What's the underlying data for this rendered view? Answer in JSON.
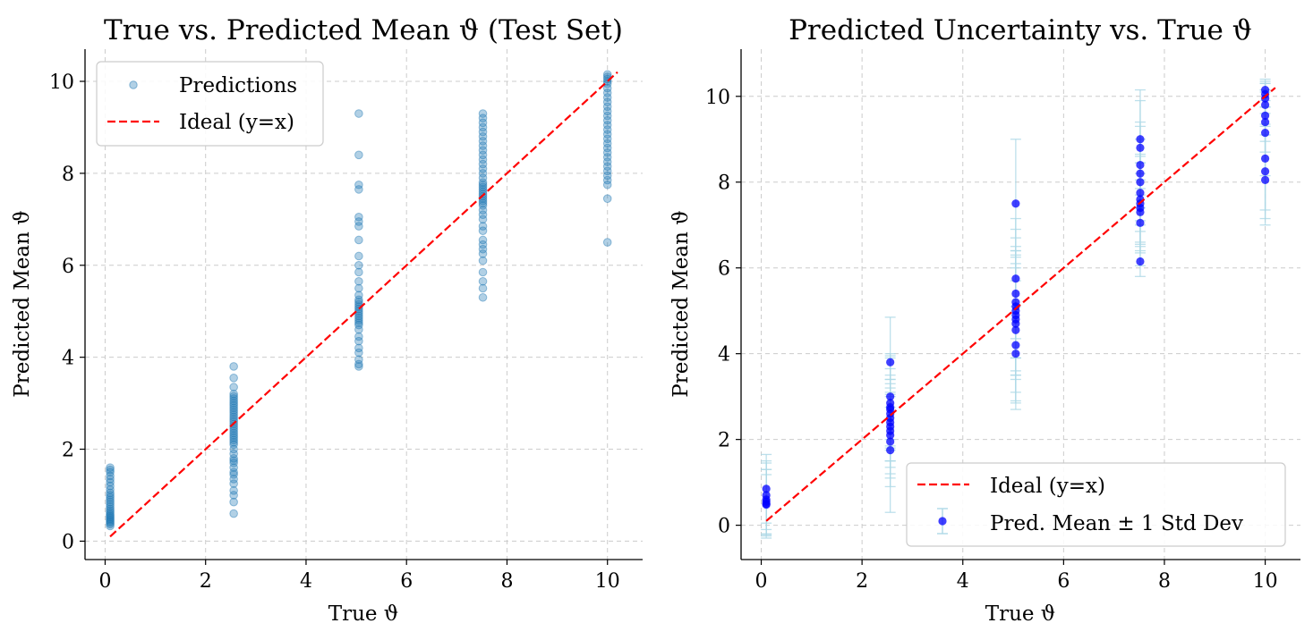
{
  "colors": {
    "predictions": "#1f77b4",
    "ideal": "#ff0000",
    "pred_mean": "#0000ff",
    "errorbar": "#add8e6",
    "grid": "#cccccc"
  },
  "chart_data": [
    {
      "type": "scatter",
      "title": "True vs. Predicted Mean ϑ (Test Set)",
      "xlabel": "True ϑ",
      "ylabel": "Predicted Mean ϑ",
      "xlim": [
        -0.4,
        10.7
      ],
      "ylim": [
        -0.4,
        10.7
      ],
      "xticks": [
        "0",
        "2",
        "4",
        "6",
        "8",
        "10"
      ],
      "yticks": [
        "0",
        "2",
        "4",
        "6",
        "8",
        "10"
      ],
      "grid": true,
      "legend_position": "top-left",
      "series": [
        {
          "name": "Predictions",
          "kind": "points",
          "points": [
            [
              0.1,
              1.6
            ],
            [
              0.1,
              1.55
            ],
            [
              0.1,
              1.5
            ],
            [
              0.1,
              1.42
            ],
            [
              0.1,
              1.35
            ],
            [
              0.1,
              1.28
            ],
            [
              0.1,
              1.2
            ],
            [
              0.1,
              1.12
            ],
            [
              0.1,
              1.05
            ],
            [
              0.1,
              1.0
            ],
            [
              0.1,
              0.95
            ],
            [
              0.1,
              0.9
            ],
            [
              0.1,
              0.85
            ],
            [
              0.1,
              0.8
            ],
            [
              0.1,
              0.75
            ],
            [
              0.1,
              0.7
            ],
            [
              0.1,
              0.66
            ],
            [
              0.1,
              0.62
            ],
            [
              0.1,
              0.58
            ],
            [
              0.1,
              0.55
            ],
            [
              0.1,
              0.52
            ],
            [
              0.1,
              0.49
            ],
            [
              0.1,
              0.46
            ],
            [
              0.1,
              0.43
            ],
            [
              0.1,
              0.4
            ],
            [
              0.1,
              0.37
            ],
            [
              0.1,
              0.33
            ],
            [
              2.56,
              3.8
            ],
            [
              2.56,
              3.55
            ],
            [
              2.56,
              3.35
            ],
            [
              2.56,
              3.2
            ],
            [
              2.56,
              3.15
            ],
            [
              2.56,
              3.1
            ],
            [
              2.56,
              3.05
            ],
            [
              2.56,
              3.0
            ],
            [
              2.56,
              2.95
            ],
            [
              2.56,
              2.9
            ],
            [
              2.56,
              2.85
            ],
            [
              2.56,
              2.8
            ],
            [
              2.56,
              2.75
            ],
            [
              2.56,
              2.7
            ],
            [
              2.56,
              2.65
            ],
            [
              2.56,
              2.6
            ],
            [
              2.56,
              2.55
            ],
            [
              2.56,
              2.5
            ],
            [
              2.56,
              2.45
            ],
            [
              2.56,
              2.4
            ],
            [
              2.56,
              2.35
            ],
            [
              2.56,
              2.3
            ],
            [
              2.56,
              2.25
            ],
            [
              2.56,
              2.2
            ],
            [
              2.56,
              2.15
            ],
            [
              2.56,
              2.1
            ],
            [
              2.56,
              2.0
            ],
            [
              2.56,
              1.9
            ],
            [
              2.56,
              1.8
            ],
            [
              2.56,
              1.75
            ],
            [
              2.56,
              1.7
            ],
            [
              2.56,
              1.6
            ],
            [
              2.56,
              1.5
            ],
            [
              2.56,
              1.45
            ],
            [
              2.56,
              1.35
            ],
            [
              2.56,
              1.25
            ],
            [
              2.56,
              1.1
            ],
            [
              2.56,
              1.0
            ],
            [
              2.56,
              0.85
            ],
            [
              2.56,
              0.6
            ],
            [
              5.05,
              9.3
            ],
            [
              5.05,
              8.4
            ],
            [
              5.05,
              7.75
            ],
            [
              5.05,
              7.65
            ],
            [
              5.05,
              7.05
            ],
            [
              5.05,
              6.95
            ],
            [
              5.05,
              6.85
            ],
            [
              5.05,
              6.55
            ],
            [
              5.05,
              6.2
            ],
            [
              5.05,
              6.0
            ],
            [
              5.05,
              5.85
            ],
            [
              5.05,
              5.65
            ],
            [
              5.05,
              5.5
            ],
            [
              5.05,
              5.35
            ],
            [
              5.05,
              5.25
            ],
            [
              5.05,
              5.2
            ],
            [
              5.05,
              5.15
            ],
            [
              5.05,
              5.1
            ],
            [
              5.05,
              5.05
            ],
            [
              5.05,
              5.0
            ],
            [
              5.05,
              4.95
            ],
            [
              5.05,
              4.9
            ],
            [
              5.05,
              4.85
            ],
            [
              5.05,
              4.8
            ],
            [
              5.05,
              4.75
            ],
            [
              5.05,
              4.7
            ],
            [
              5.05,
              4.6
            ],
            [
              5.05,
              4.45
            ],
            [
              5.05,
              4.35
            ],
            [
              5.05,
              4.2
            ],
            [
              5.05,
              4.1
            ],
            [
              5.05,
              3.95
            ],
            [
              5.05,
              3.85
            ],
            [
              5.05,
              3.8
            ],
            [
              7.52,
              9.3
            ],
            [
              7.52,
              9.2
            ],
            [
              7.52,
              9.1
            ],
            [
              7.52,
              9.0
            ],
            [
              7.52,
              8.9
            ],
            [
              7.52,
              8.8
            ],
            [
              7.52,
              8.7
            ],
            [
              7.52,
              8.6
            ],
            [
              7.52,
              8.5
            ],
            [
              7.52,
              8.4
            ],
            [
              7.52,
              8.3
            ],
            [
              7.52,
              8.2
            ],
            [
              7.52,
              8.1
            ],
            [
              7.52,
              8.0
            ],
            [
              7.52,
              7.9
            ],
            [
              7.52,
              7.8
            ],
            [
              7.52,
              7.75
            ],
            [
              7.52,
              7.7
            ],
            [
              7.52,
              7.65
            ],
            [
              7.52,
              7.6
            ],
            [
              7.52,
              7.55
            ],
            [
              7.52,
              7.5
            ],
            [
              7.52,
              7.45
            ],
            [
              7.52,
              7.4
            ],
            [
              7.52,
              7.35
            ],
            [
              7.52,
              7.3
            ],
            [
              7.52,
              7.2
            ],
            [
              7.52,
              7.1
            ],
            [
              7.52,
              7.0
            ],
            [
              7.52,
              6.85
            ],
            [
              7.52,
              6.75
            ],
            [
              7.52,
              6.55
            ],
            [
              7.52,
              6.45
            ],
            [
              7.52,
              6.35
            ],
            [
              7.52,
              6.25
            ],
            [
              7.52,
              6.1
            ],
            [
              7.52,
              5.85
            ],
            [
              7.52,
              5.65
            ],
            [
              7.52,
              5.5
            ],
            [
              7.52,
              5.3
            ],
            [
              10.0,
              10.15
            ],
            [
              10.0,
              10.1
            ],
            [
              10.0,
              10.05
            ],
            [
              10.0,
              10.0
            ],
            [
              10.0,
              9.95
            ],
            [
              10.0,
              9.85
            ],
            [
              10.0,
              9.75
            ],
            [
              10.0,
              9.65
            ],
            [
              10.0,
              9.55
            ],
            [
              10.0,
              9.45
            ],
            [
              10.0,
              9.35
            ],
            [
              10.0,
              9.25
            ],
            [
              10.0,
              9.15
            ],
            [
              10.0,
              9.05
            ],
            [
              10.0,
              8.95
            ],
            [
              10.0,
              8.85
            ],
            [
              10.0,
              8.75
            ],
            [
              10.0,
              8.65
            ],
            [
              10.0,
              8.55
            ],
            [
              10.0,
              8.45
            ],
            [
              10.0,
              8.35
            ],
            [
              10.0,
              8.25
            ],
            [
              10.0,
              8.15
            ],
            [
              10.0,
              8.05
            ],
            [
              10.0,
              7.95
            ],
            [
              10.0,
              7.85
            ],
            [
              10.0,
              7.75
            ],
            [
              10.0,
              7.45
            ],
            [
              10.0,
              6.5
            ]
          ]
        },
        {
          "name": "Ideal (y=x)",
          "kind": "line",
          "x": [
            0.1,
            10.2
          ],
          "y": [
            0.1,
            10.2
          ]
        }
      ]
    },
    {
      "type": "scatter",
      "title": "Predicted Uncertainty vs. True ϑ",
      "xlabel": "True ϑ",
      "ylabel": "Predicted Mean ϑ",
      "xlim": [
        -0.4,
        10.7
      ],
      "ylim": [
        -0.8,
        11.1
      ],
      "xticks": [
        "0",
        "2",
        "4",
        "6",
        "8",
        "10"
      ],
      "yticks": [
        "0",
        "2",
        "4",
        "6",
        "8",
        "10"
      ],
      "grid": true,
      "legend_position": "bottom-right",
      "series": [
        {
          "name": "Ideal (y=x)",
          "kind": "line",
          "x": [
            0.1,
            10.2
          ],
          "y": [
            0.1,
            10.2
          ]
        },
        {
          "name": "Pred. Mean ± 1 Std Dev",
          "kind": "errorbar",
          "points": [
            {
              "x": 0.1,
              "y": 0.85,
              "err": 0.8
            },
            {
              "x": 0.1,
              "y": 0.7,
              "err": 0.8
            },
            {
              "x": 0.1,
              "y": 0.6,
              "err": 0.85
            },
            {
              "x": 0.1,
              "y": 0.55,
              "err": 0.75
            },
            {
              "x": 0.1,
              "y": 0.5,
              "err": 0.8
            },
            {
              "x": 0.1,
              "y": 0.48,
              "err": 0.7
            },
            {
              "x": 2.56,
              "y": 3.8,
              "err": 1.05
            },
            {
              "x": 2.56,
              "y": 3.0,
              "err": 1.0
            },
            {
              "x": 2.56,
              "y": 2.85,
              "err": 1.1
            },
            {
              "x": 2.56,
              "y": 2.75,
              "err": 0.9
            },
            {
              "x": 2.56,
              "y": 2.7,
              "err": 1.2
            },
            {
              "x": 2.56,
              "y": 2.6,
              "err": 0.8
            },
            {
              "x": 2.56,
              "y": 2.5,
              "err": 1.0
            },
            {
              "x": 2.56,
              "y": 2.4,
              "err": 0.9
            },
            {
              "x": 2.56,
              "y": 2.3,
              "err": 1.1
            },
            {
              "x": 2.56,
              "y": 2.2,
              "err": 0.85
            },
            {
              "x": 2.56,
              "y": 2.1,
              "err": 1.0
            },
            {
              "x": 2.56,
              "y": 1.95,
              "err": 1.05
            },
            {
              "x": 2.56,
              "y": 1.75,
              "err": 1.45
            },
            {
              "x": 5.05,
              "y": 7.5,
              "err": 1.5
            },
            {
              "x": 5.05,
              "y": 5.75,
              "err": 1.4
            },
            {
              "x": 5.05,
              "y": 5.4,
              "err": 1.5
            },
            {
              "x": 5.05,
              "y": 5.2,
              "err": 1.3
            },
            {
              "x": 5.05,
              "y": 5.1,
              "err": 1.6
            },
            {
              "x": 5.05,
              "y": 5.0,
              "err": 1.4
            },
            {
              "x": 5.05,
              "y": 4.9,
              "err": 1.5
            },
            {
              "x": 5.05,
              "y": 4.8,
              "err": 1.3
            },
            {
              "x": 5.05,
              "y": 4.7,
              "err": 1.6
            },
            {
              "x": 5.05,
              "y": 4.55,
              "err": 1.7
            },
            {
              "x": 5.05,
              "y": 4.2,
              "err": 1.5
            },
            {
              "x": 5.05,
              "y": 4.0,
              "err": 1.1
            },
            {
              "x": 7.52,
              "y": 9.0,
              "err": 1.15
            },
            {
              "x": 7.52,
              "y": 8.8,
              "err": 1.1
            },
            {
              "x": 7.52,
              "y": 8.4,
              "err": 1.0
            },
            {
              "x": 7.52,
              "y": 8.2,
              "err": 1.1
            },
            {
              "x": 7.52,
              "y": 8.0,
              "err": 1.0
            },
            {
              "x": 7.52,
              "y": 7.75,
              "err": 0.9
            },
            {
              "x": 7.52,
              "y": 7.6,
              "err": 1.0
            },
            {
              "x": 7.52,
              "y": 7.5,
              "err": 0.95
            },
            {
              "x": 7.52,
              "y": 7.4,
              "err": 1.05
            },
            {
              "x": 7.52,
              "y": 7.3,
              "err": 0.9
            },
            {
              "x": 7.52,
              "y": 7.05,
              "err": 1.0
            },
            {
              "x": 7.52,
              "y": 6.15,
              "err": 0.35
            },
            {
              "x": 10.0,
              "y": 10.15,
              "err": 0.25
            },
            {
              "x": 10.0,
              "y": 10.05,
              "err": 0.3
            },
            {
              "x": 10.0,
              "y": 9.95,
              "err": 0.35
            },
            {
              "x": 10.0,
              "y": 9.8,
              "err": 0.5
            },
            {
              "x": 10.0,
              "y": 9.55,
              "err": 0.6
            },
            {
              "x": 10.0,
              "y": 9.4,
              "err": 0.7
            },
            {
              "x": 10.0,
              "y": 9.15,
              "err": 1.0
            },
            {
              "x": 10.0,
              "y": 8.55,
              "err": 1.2
            },
            {
              "x": 10.0,
              "y": 8.25,
              "err": 1.1
            },
            {
              "x": 10.0,
              "y": 8.05,
              "err": 1.05
            }
          ]
        }
      ]
    }
  ]
}
